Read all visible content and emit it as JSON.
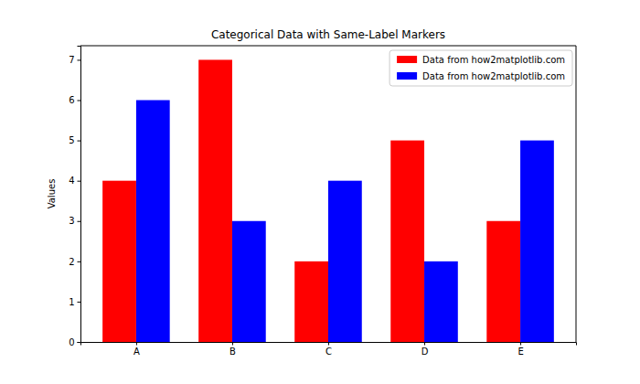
{
  "chart_data": {
    "type": "bar",
    "title": "Categorical Data with Same-Label Markers",
    "y_label": "Values",
    "categories": [
      "A",
      "B",
      "C",
      "D",
      "E"
    ],
    "series": [
      {
        "name": "Data from how2matplotlib.com",
        "color": "#ff0000",
        "values": [
          4,
          7,
          2,
          5,
          3
        ]
      },
      {
        "name": "Data from how2matplotlib.com",
        "color": "#0000ff",
        "values": [
          6,
          3,
          4,
          2,
          5
        ]
      }
    ],
    "ylim": [
      0,
      7.35
    ],
    "yticks": [
      0,
      1,
      2,
      3,
      4,
      5,
      6,
      7
    ],
    "legend": "upper-right",
    "grid": false
  }
}
